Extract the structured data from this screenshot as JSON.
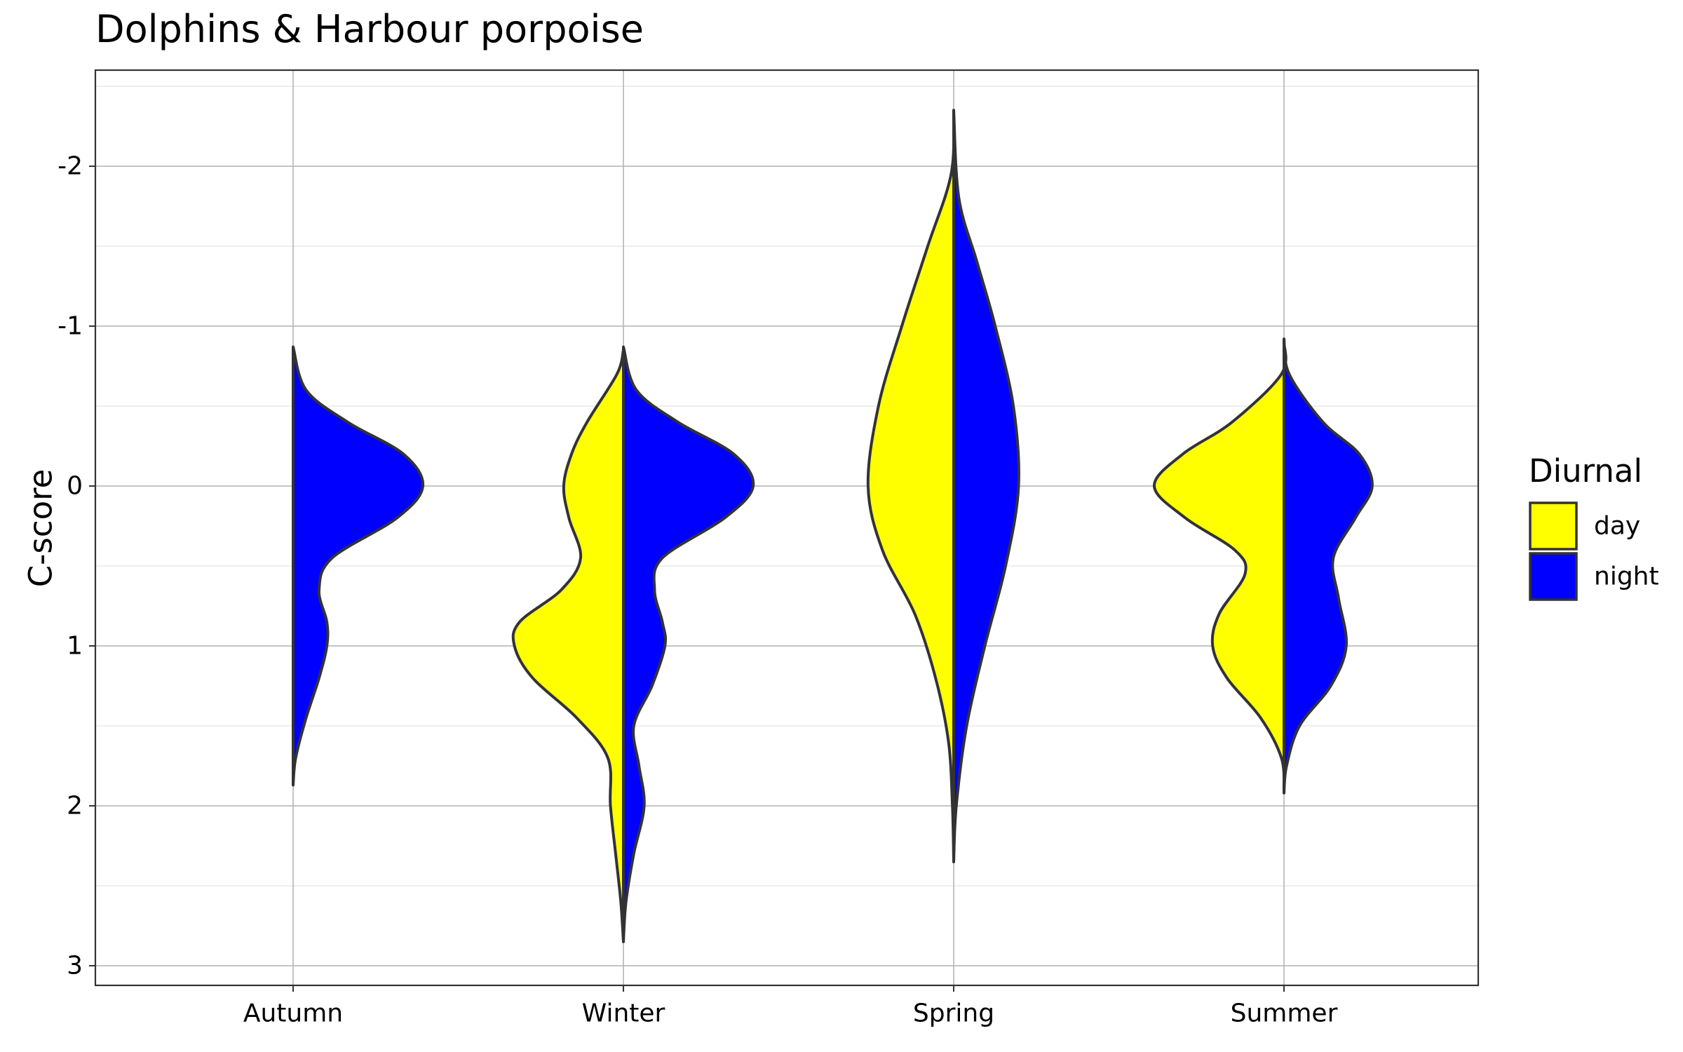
{
  "chart_data": {
    "type": "violin",
    "title": "Dolphins & Harbour porpoise",
    "xlabel": "",
    "ylabel": "C-score",
    "y_reversed": true,
    "ylim": [
      -2.6,
      3.13
    ],
    "yticks": [
      -2,
      -1,
      0,
      1,
      2,
      3
    ],
    "ytick_labels": [
      "-2",
      "-1",
      "0",
      "1",
      "2",
      "3"
    ],
    "categories": [
      "Autumn",
      "Winter",
      "Spring",
      "Summer"
    ],
    "grid": true,
    "legend": {
      "title": "Diurnal",
      "position": "right",
      "entries": [
        {
          "label": "day",
          "color": "#FFFF00"
        },
        {
          "label": "night",
          "color": "#0000FF"
        }
      ]
    },
    "series": [
      {
        "name": "day",
        "color": "#FFFF00",
        "side": "left",
        "violins": [
          {
            "category": "Autumn",
            "range": null,
            "profile": []
          },
          {
            "category": "Winter",
            "range": [
              -0.85,
              2.85
            ],
            "profile": [
              [
                -0.85,
                0.0
              ],
              [
                -0.7,
                0.05
              ],
              [
                -0.4,
                0.28
              ],
              [
                -0.2,
                0.4
              ],
              [
                0.0,
                0.46
              ],
              [
                0.2,
                0.42
              ],
              [
                0.45,
                0.33
              ],
              [
                0.65,
                0.48
              ],
              [
                0.85,
                0.8
              ],
              [
                1.0,
                0.84
              ],
              [
                1.2,
                0.7
              ],
              [
                1.45,
                0.36
              ],
              [
                1.7,
                0.12
              ],
              [
                2.0,
                0.1
              ],
              [
                2.3,
                0.06
              ],
              [
                2.6,
                0.02
              ],
              [
                2.85,
                0.0
              ]
            ]
          },
          {
            "category": "Spring",
            "range": [
              -2.35,
              2.35
            ],
            "profile": [
              [
                -2.35,
                0.0
              ],
              [
                -1.95,
                0.02
              ],
              [
                -1.5,
                0.2
              ],
              [
                -1.0,
                0.4
              ],
              [
                -0.5,
                0.58
              ],
              [
                0.0,
                0.66
              ],
              [
                0.4,
                0.55
              ],
              [
                0.8,
                0.3
              ],
              [
                1.2,
                0.14
              ],
              [
                1.6,
                0.04
              ],
              [
                2.0,
                0.01
              ],
              [
                2.35,
                0.0
              ]
            ]
          },
          {
            "category": "Summer",
            "range": [
              -0.9,
              1.9
            ],
            "profile": [
              [
                -0.9,
                0.0
              ],
              [
                -0.7,
                0.02
              ],
              [
                -0.4,
                0.4
              ],
              [
                -0.2,
                0.78
              ],
              [
                0.0,
                1.0
              ],
              [
                0.2,
                0.76
              ],
              [
                0.4,
                0.38
              ],
              [
                0.55,
                0.3
              ],
              [
                0.8,
                0.5
              ],
              [
                1.0,
                0.55
              ],
              [
                1.2,
                0.44
              ],
              [
                1.45,
                0.18
              ],
              [
                1.7,
                0.02
              ],
              [
                1.9,
                0.0
              ]
            ]
          }
        ]
      },
      {
        "name": "night",
        "color": "#0000FF",
        "side": "right",
        "violins": [
          {
            "category": "Autumn",
            "range": [
              -0.87,
              1.87
            ],
            "profile": [
              [
                -0.87,
                0.0
              ],
              [
                -0.6,
                0.1
              ],
              [
                -0.4,
                0.42
              ],
              [
                -0.2,
                0.85
              ],
              [
                0.0,
                1.0
              ],
              [
                0.2,
                0.8
              ],
              [
                0.45,
                0.3
              ],
              [
                0.65,
                0.2
              ],
              [
                0.85,
                0.26
              ],
              [
                1.0,
                0.26
              ],
              [
                1.2,
                0.2
              ],
              [
                1.45,
                0.1
              ],
              [
                1.7,
                0.02
              ],
              [
                1.87,
                0.0
              ]
            ]
          },
          {
            "category": "Winter",
            "range": [
              -0.87,
              2.85
            ],
            "profile": [
              [
                -0.87,
                0.0
              ],
              [
                -0.6,
                0.1
              ],
              [
                -0.4,
                0.42
              ],
              [
                -0.2,
                0.85
              ],
              [
                0.0,
                1.0
              ],
              [
                0.2,
                0.78
              ],
              [
                0.45,
                0.3
              ],
              [
                0.65,
                0.24
              ],
              [
                0.85,
                0.3
              ],
              [
                1.0,
                0.32
              ],
              [
                1.25,
                0.22
              ],
              [
                1.5,
                0.08
              ],
              [
                1.75,
                0.12
              ],
              [
                2.0,
                0.16
              ],
              [
                2.3,
                0.08
              ],
              [
                2.6,
                0.02
              ],
              [
                2.85,
                0.0
              ]
            ]
          },
          {
            "category": "Spring",
            "range": [
              -2.35,
              2.35
            ],
            "profile": [
              [
                -2.35,
                0.0
              ],
              [
                -1.8,
                0.04
              ],
              [
                -1.4,
                0.18
              ],
              [
                -1.0,
                0.32
              ],
              [
                -0.5,
                0.46
              ],
              [
                0.0,
                0.5
              ],
              [
                0.5,
                0.4
              ],
              [
                1.0,
                0.24
              ],
              [
                1.5,
                0.1
              ],
              [
                2.0,
                0.02
              ],
              [
                2.35,
                0.0
              ]
            ]
          },
          {
            "category": "Summer",
            "range": [
              -0.92,
              1.92
            ],
            "profile": [
              [
                -0.92,
                0.0
              ],
              [
                -0.7,
                0.04
              ],
              [
                -0.4,
                0.3
              ],
              [
                -0.2,
                0.58
              ],
              [
                0.0,
                0.68
              ],
              [
                0.2,
                0.55
              ],
              [
                0.45,
                0.38
              ],
              [
                0.7,
                0.42
              ],
              [
                1.0,
                0.48
              ],
              [
                1.25,
                0.36
              ],
              [
                1.5,
                0.12
              ],
              [
                1.75,
                0.02
              ],
              [
                1.92,
                0.0
              ]
            ]
          }
        ]
      }
    ]
  }
}
